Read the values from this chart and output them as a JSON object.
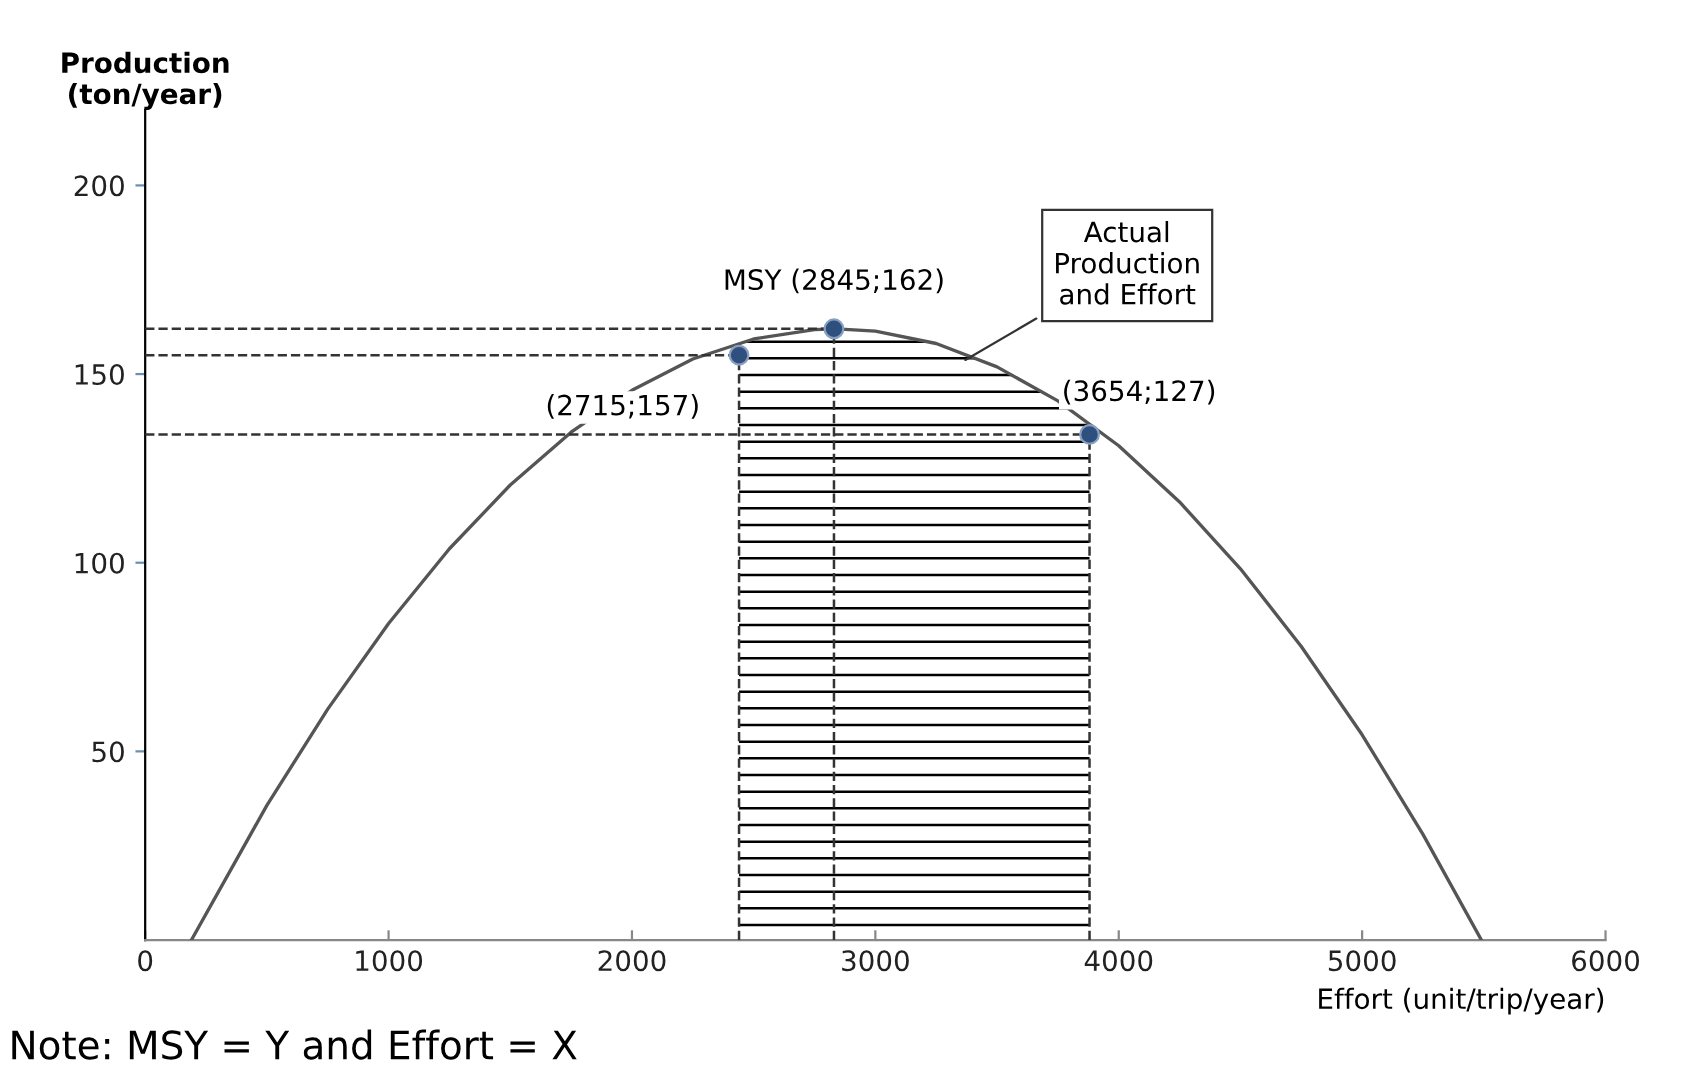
{
  "chart_data": {
    "type": "line",
    "xlabel": "Effort (unit/trip/year)",
    "ylabel": "Production\n(ton/year)",
    "xlim": [
      0,
      6000
    ],
    "xticks": [
      0,
      1000,
      2000,
      3000,
      4000,
      5000,
      6000
    ],
    "ylim": [
      0,
      220
    ],
    "yticks": [
      50,
      100,
      150,
      200
    ],
    "grid": false,
    "legend": false,
    "series": [
      {
        "color": "#555555",
        "x": [
          190,
          500,
          750,
          1000,
          1250,
          1500,
          1750,
          2000,
          2250,
          2500,
          2750,
          2840,
          3000,
          3250,
          3500,
          3750,
          4000,
          4250,
          4500,
          4750,
          5000,
          5250,
          5490
        ],
        "values": [
          0,
          35.7,
          61.2,
          83.9,
          103.7,
          120.6,
          134.6,
          145.7,
          154.0,
          159.3,
          161.8,
          162,
          161.4,
          158.1,
          151.9,
          142.9,
          131.0,
          116.1,
          98.4,
          77.8,
          54.4,
          28.0,
          0
        ]
      },
      {
        "type": "scatter",
        "color": "#2f4f7f",
        "marker": "circle",
        "x": [
          2440,
          2830,
          3880
        ],
        "values": [
          155,
          162,
          134
        ]
      }
    ],
    "ref_lines": [
      {
        "axis": "y",
        "value": 162,
        "line_style": "dashed",
        "color": "#333333"
      },
      {
        "axis": "y",
        "value": 155,
        "line_style": "dashed",
        "color": "#333333"
      },
      {
        "axis": "y",
        "value": 134,
        "line_style": "dashed",
        "color": "#333333"
      },
      {
        "axis": "x",
        "value": 2440,
        "line_style": "dashed",
        "color": "#333333"
      },
      {
        "axis": "x",
        "value": 2830,
        "line_style": "dashed",
        "color": "#333333"
      },
      {
        "axis": "x",
        "value": 3880,
        "line_style": "dashed",
        "color": "#333333"
      }
    ],
    "bands": [
      {
        "axis": "x",
        "from": 2440,
        "to": 3880,
        "color": "#000000"
      }
    ],
    "annotations": [
      {
        "text": "(2715;157)",
        "x": 2440,
        "y": 155
      },
      {
        "text": "MSY (2845;162)",
        "x": 2830,
        "y": 162
      },
      {
        "text": "(3654;127)",
        "x": 3880,
        "y": 134
      },
      {
        "text": "Actual\nProduction\nand Effort",
        "x": 3350,
        "y": 153
      },
      "Note: MSY = Y and Effort = X"
    ]
  }
}
